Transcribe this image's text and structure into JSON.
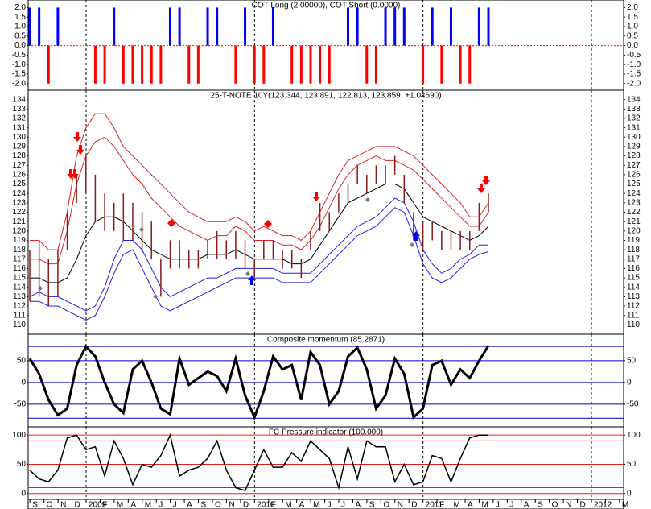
{
  "x_axis": {
    "categories": [
      "S",
      "O",
      "N",
      "D",
      "2009",
      "F",
      "M",
      "A",
      "M",
      "J",
      "J",
      "A",
      "S",
      "O",
      "N",
      "D",
      "2010",
      "F",
      "M",
      "A",
      "M",
      "J",
      "J",
      "A",
      "S",
      "O",
      "N",
      "D",
      "2011",
      "F",
      "M",
      "A",
      "M",
      "J",
      "J",
      "A",
      "S",
      "O",
      "N",
      "D",
      "2012",
      null,
      "M"
    ]
  },
  "chart_data": [
    {
      "type": "bar",
      "title": "COT Long (2.00000), COT Short (0.0000)",
      "up_color": "#0000ff",
      "down_color": "#ff0000",
      "ylim": [
        -2.35,
        2.4
      ],
      "yticks": [
        {
          "value": 2,
          "label": "2.0"
        },
        1.5,
        {
          "value": 1,
          "label": "1.0"
        },
        0.5,
        {
          "value": 0,
          "label": "0.0"
        },
        -0.5,
        {
          "value": -1,
          "label": "-1.0"
        },
        -1.5,
        {
          "value": -2,
          "label": "-2.0"
        }
      ],
      "values": [
        2,
        2,
        -2,
        2,
        0,
        0,
        0,
        -2,
        -2,
        2,
        -2,
        -2,
        -2,
        -2,
        -2,
        2,
        2,
        -2,
        -2,
        2,
        2,
        0,
        -2,
        2,
        -2,
        -2,
        2,
        0,
        -2,
        -2,
        -2,
        -2,
        -2,
        0,
        2,
        2,
        -2,
        -2,
        2,
        2,
        2,
        0,
        -2,
        2,
        -2,
        2,
        -2,
        -2,
        2,
        2
      ]
    },
    {
      "type": "hilo",
      "title": "25-T-NOTE 10Y(123.344, 123.891, 122.813, 123.859, +1.04690)",
      "color": "#8b1a1a",
      "ylim": [
        109,
        135
      ],
      "yticks": [
        110,
        111,
        112,
        113,
        114,
        115,
        116,
        117,
        118,
        119,
        120,
        121,
        122,
        123,
        124,
        125,
        126,
        127,
        128,
        129,
        130,
        131,
        132,
        133,
        134
      ],
      "high": [
        118,
        119,
        117,
        118,
        122,
        126,
        128,
        126,
        124,
        123,
        124,
        123,
        122,
        121,
        117,
        119,
        119,
        118,
        118,
        119,
        120,
        119,
        120,
        119,
        117,
        119,
        119,
        118,
        118,
        117,
        120,
        123,
        122,
        124,
        125,
        127,
        126,
        127,
        127,
        128,
        126,
        122,
        121,
        121,
        120,
        120,
        120,
        120,
        123,
        124
      ],
      "low": [
        112.5,
        113,
        112,
        113,
        118,
        123,
        124,
        121,
        120,
        120,
        119,
        119,
        118,
        117,
        113,
        116,
        116,
        116,
        116,
        117,
        117,
        117,
        117,
        116,
        115,
        117,
        117,
        116,
        116,
        115,
        118,
        120,
        120,
        122,
        123,
        125,
        124,
        125,
        125,
        126,
        123,
        119,
        118,
        119,
        118,
        118,
        118,
        118,
        120,
        122
      ],
      "series": [
        {
          "color": "#e02020",
          "values": [
            119,
            119,
            118,
            118,
            122,
            128,
            131,
            132.5,
            132.5,
            131,
            129,
            128,
            127,
            126,
            125,
            124,
            123,
            122,
            121.5,
            121,
            121,
            121,
            121.5,
            121,
            120,
            120.5,
            120,
            119.5,
            119.5,
            119,
            120,
            122,
            124,
            126,
            127.5,
            128,
            128.5,
            129,
            129,
            129,
            128.5,
            128,
            127,
            126,
            125,
            124,
            123,
            121.5,
            121.5,
            123
          ]
        },
        {
          "color": "#e02020",
          "values": [
            117,
            117,
            116.5,
            116.5,
            120,
            125,
            128,
            129.5,
            130,
            129,
            127.5,
            126,
            125,
            123.5,
            122.5,
            121.5,
            120.5,
            120,
            119.5,
            119,
            119.5,
            119.5,
            120.5,
            120,
            119,
            119,
            119,
            118.5,
            118.5,
            118,
            119,
            120.5,
            122.5,
            124.5,
            126,
            127,
            127.5,
            128,
            127.5,
            127.5,
            127,
            126.5,
            125.5,
            124.5,
            123.5,
            122.5,
            121.5,
            120.5,
            120.5,
            122
          ]
        },
        {
          "color": "#000000",
          "values": [
            115,
            115,
            114.5,
            114.5,
            115,
            117,
            119.5,
            121,
            121.5,
            121.5,
            121,
            120,
            119,
            118,
            117.5,
            117,
            117,
            117,
            117,
            117.5,
            117.5,
            117.5,
            118,
            117.5,
            117,
            117,
            117,
            117,
            116.5,
            116.5,
            117,
            118.5,
            120,
            121.5,
            123,
            123.5,
            124,
            124.5,
            125,
            125,
            124.5,
            123,
            121.5,
            121,
            120.5,
            120,
            119.5,
            119,
            119.5,
            120.5
          ]
        },
        {
          "color": "#2020e0",
          "values": [
            113,
            113.5,
            113,
            113,
            112.5,
            112,
            111.5,
            112,
            114,
            117,
            119,
            119,
            118,
            116,
            114,
            113,
            113.5,
            114,
            114.5,
            115,
            115,
            115.5,
            116,
            116,
            116,
            116,
            116,
            115.5,
            115.5,
            115.5,
            115.5,
            116.5,
            117.5,
            118.5,
            119.5,
            120.5,
            121,
            121.5,
            122.5,
            123.5,
            123,
            121,
            118,
            116.5,
            115.5,
            116,
            117,
            117.5,
            118.5,
            118.5
          ]
        },
        {
          "color": "#2020e0",
          "values": [
            112.5,
            112.5,
            112,
            112,
            111.5,
            111,
            110.5,
            111,
            113,
            115.5,
            117.5,
            118,
            116,
            114,
            112,
            111.5,
            112,
            112.5,
            113,
            113.5,
            114,
            114.5,
            115,
            115,
            115,
            115,
            115,
            114.5,
            114.5,
            114.5,
            114.5,
            115.5,
            116.5,
            117.5,
            118.5,
            119.5,
            120,
            120.5,
            121.5,
            122.5,
            122,
            119.5,
            116.5,
            115,
            114.5,
            115,
            116,
            117,
            117.5,
            117.8
          ]
        }
      ]
    },
    {
      "type": "line",
      "title": "Composite momentum (85.2871)",
      "color": "#000000",
      "level_color": "#0000cc",
      "ylim": [
        -102,
        111
      ],
      "yticks": [
        -50,
        0,
        50
      ],
      "levels": [
        83,
        50,
        0,
        -50,
        -82
      ],
      "values": [
        55,
        20,
        -40,
        -75,
        -60,
        40,
        83,
        60,
        0,
        -50,
        -70,
        30,
        50,
        0,
        -60,
        -73,
        55,
        -5,
        10,
        25,
        15,
        -20,
        55,
        -30,
        -80,
        -20,
        60,
        30,
        40,
        -40,
        70,
        40,
        -50,
        -20,
        60,
        80,
        30,
        -60,
        -30,
        55,
        20,
        -80,
        -60,
        40,
        50,
        -5,
        30,
        10,
        50,
        85
      ]
    },
    {
      "type": "line",
      "title": "FC Pressure indicator (100.000)",
      "color": "#000000",
      "level_color": "#e02020",
      "ylim": [
        -10,
        114
      ],
      "yticks": [
        0,
        50,
        100
      ],
      "levels": [
        100,
        90,
        50,
        10,
        0
      ],
      "values": [
        40,
        25,
        20,
        40,
        95,
        100,
        75,
        80,
        30,
        90,
        60,
        15,
        50,
        45,
        65,
        100,
        30,
        40,
        45,
        60,
        90,
        40,
        10,
        5,
        40,
        75,
        45,
        45,
        70,
        55,
        90,
        75,
        60,
        10,
        80,
        25,
        90,
        80,
        80,
        20,
        50,
        15,
        20,
        65,
        60,
        20,
        60,
        95,
        100,
        100
      ]
    }
  ]
}
